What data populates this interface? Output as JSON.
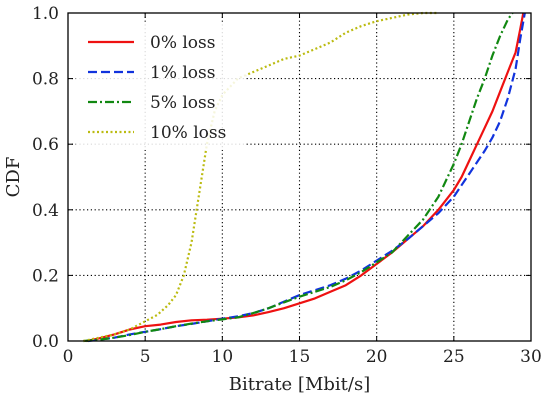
{
  "chart_data": {
    "type": "line",
    "xlabel": "Bitrate [Mbit/s]",
    "ylabel": "CDF",
    "xlim": [
      0,
      30
    ],
    "ylim": [
      0,
      1.0
    ],
    "xticks": [
      0,
      5,
      10,
      15,
      20,
      25,
      30
    ],
    "yticks": [
      0.0,
      0.2,
      0.4,
      0.6,
      0.8,
      1.0
    ],
    "xtick_labels": [
      "0",
      "5",
      "10",
      "15",
      "20",
      "25",
      "30"
    ],
    "ytick_labels": [
      "0.0",
      "0.2",
      "0.4",
      "0.6",
      "0.8",
      "1.0"
    ],
    "grid": true,
    "grid_style": "dotted",
    "legend_position": "top-left",
    "series": [
      {
        "name": "0% loss",
        "color": "#ee1111",
        "dash": "solid",
        "points": [
          [
            1.2,
            0
          ],
          [
            2,
            0.008
          ],
          [
            3,
            0.02
          ],
          [
            4,
            0.035
          ],
          [
            5,
            0.045
          ],
          [
            6,
            0.05
          ],
          [
            7,
            0.058
          ],
          [
            8,
            0.063
          ],
          [
            9,
            0.065
          ],
          [
            10,
            0.068
          ],
          [
            11,
            0.072
          ],
          [
            12,
            0.078
          ],
          [
            13,
            0.088
          ],
          [
            14,
            0.1
          ],
          [
            15,
            0.115
          ],
          [
            16,
            0.13
          ],
          [
            17,
            0.15
          ],
          [
            18,
            0.17
          ],
          [
            19,
            0.2
          ],
          [
            20,
            0.235
          ],
          [
            21,
            0.27
          ],
          [
            22,
            0.31
          ],
          [
            23,
            0.35
          ],
          [
            24,
            0.4
          ],
          [
            25,
            0.46
          ],
          [
            25.5,
            0.5
          ],
          [
            26,
            0.55
          ],
          [
            26.5,
            0.6
          ],
          [
            27,
            0.65
          ],
          [
            27.5,
            0.7
          ],
          [
            28,
            0.76
          ],
          [
            28.5,
            0.82
          ],
          [
            29,
            0.88
          ],
          [
            29.3,
            0.95
          ],
          [
            29.5,
            1.0
          ]
        ]
      },
      {
        "name": "1% loss",
        "color": "#1133dd",
        "dash": "dashed",
        "points": [
          [
            1.3,
            0
          ],
          [
            2,
            0.004
          ],
          [
            3,
            0.01
          ],
          [
            4,
            0.02
          ],
          [
            5,
            0.028
          ],
          [
            6,
            0.036
          ],
          [
            7,
            0.045
          ],
          [
            8,
            0.052
          ],
          [
            9,
            0.06
          ],
          [
            10,
            0.068
          ],
          [
            11,
            0.075
          ],
          [
            12,
            0.085
          ],
          [
            13,
            0.1
          ],
          [
            14,
            0.12
          ],
          [
            15,
            0.14
          ],
          [
            16,
            0.155
          ],
          [
            17,
            0.17
          ],
          [
            18,
            0.19
          ],
          [
            19,
            0.215
          ],
          [
            20,
            0.245
          ],
          [
            21,
            0.275
          ],
          [
            22,
            0.31
          ],
          [
            23,
            0.35
          ],
          [
            24,
            0.39
          ],
          [
            25,
            0.44
          ],
          [
            26,
            0.51
          ],
          [
            27,
            0.58
          ],
          [
            27.5,
            0.62
          ],
          [
            28,
            0.67
          ],
          [
            28.5,
            0.74
          ],
          [
            29,
            0.83
          ],
          [
            29.3,
            0.92
          ],
          [
            29.6,
            1.0
          ]
        ]
      },
      {
        "name": "5% loss",
        "color": "#118811",
        "dash": "dashdot",
        "points": [
          [
            1.0,
            0
          ],
          [
            2,
            0.004
          ],
          [
            3,
            0.01
          ],
          [
            4,
            0.018
          ],
          [
            5,
            0.028
          ],
          [
            6,
            0.036
          ],
          [
            7,
            0.045
          ],
          [
            8,
            0.053
          ],
          [
            9,
            0.06
          ],
          [
            10,
            0.066
          ],
          [
            11,
            0.072
          ],
          [
            12,
            0.085
          ],
          [
            13,
            0.1
          ],
          [
            14,
            0.118
          ],
          [
            15,
            0.135
          ],
          [
            16,
            0.15
          ],
          [
            17,
            0.165
          ],
          [
            18,
            0.185
          ],
          [
            19,
            0.21
          ],
          [
            20,
            0.24
          ],
          [
            21,
            0.27
          ],
          [
            22,
            0.32
          ],
          [
            23,
            0.37
          ],
          [
            24,
            0.44
          ],
          [
            25,
            0.54
          ],
          [
            25.5,
            0.6
          ],
          [
            26,
            0.67
          ],
          [
            26.5,
            0.74
          ],
          [
            27,
            0.8
          ],
          [
            27.5,
            0.87
          ],
          [
            28,
            0.93
          ],
          [
            28.5,
            0.98
          ],
          [
            28.8,
            1.0
          ]
        ]
      },
      {
        "name": "10% loss",
        "color": "#bbbb11",
        "dash": "dotted",
        "points": [
          [
            1.0,
            0
          ],
          [
            2,
            0.01
          ],
          [
            3,
            0.02
          ],
          [
            4,
            0.035
          ],
          [
            5,
            0.06
          ],
          [
            5.8,
            0.08
          ],
          [
            6.5,
            0.11
          ],
          [
            7,
            0.14
          ],
          [
            7.5,
            0.2
          ],
          [
            8,
            0.3
          ],
          [
            8.5,
            0.45
          ],
          [
            9,
            0.6
          ],
          [
            9.5,
            0.7
          ],
          [
            10,
            0.75
          ],
          [
            11,
            0.8
          ],
          [
            12,
            0.82
          ],
          [
            13,
            0.84
          ],
          [
            14,
            0.86
          ],
          [
            15,
            0.87
          ],
          [
            16,
            0.89
          ],
          [
            17,
            0.91
          ],
          [
            18,
            0.94
          ],
          [
            19,
            0.96
          ],
          [
            20,
            0.975
          ],
          [
            21,
            0.985
          ],
          [
            22,
            0.995
          ],
          [
            23,
            1.0
          ],
          [
            24,
            1.0
          ]
        ]
      }
    ]
  }
}
